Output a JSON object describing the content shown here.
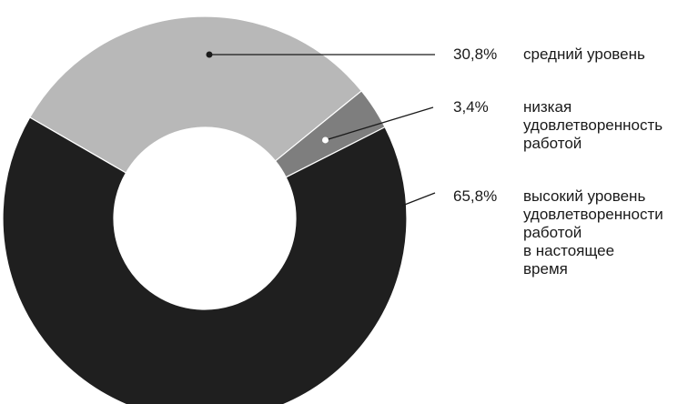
{
  "chart_data": {
    "type": "pie",
    "donut": true,
    "slices": [
      {
        "percent_label": "30,8%",
        "value": 30.8,
        "label_lines": [
          "средний уровень"
        ],
        "color": "#b8b8b8"
      },
      {
        "percent_label": "3,4%",
        "value": 3.4,
        "label_lines": [
          "низкая",
          "удовлетворенность",
          "работой"
        ],
        "color": "#7e7e7e"
      },
      {
        "percent_label": "65,8%",
        "value": 65.8,
        "label_lines": [
          "высокий уровень",
          "удовлетворенности",
          "работой",
          "в настоящее",
          "время"
        ],
        "color": "#1f1f1f"
      }
    ],
    "title": "",
    "legend_position": "right"
  }
}
